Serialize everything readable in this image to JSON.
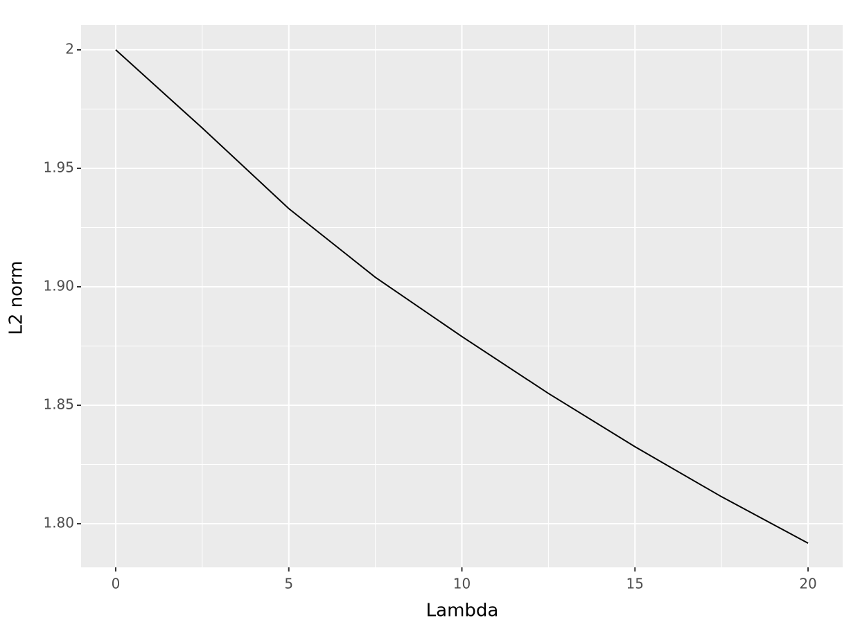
{
  "chart_data": {
    "type": "line",
    "x_label": "Lambda",
    "y_label": "L2 norm",
    "x": [
      0,
      2.5,
      5,
      7.5,
      10,
      12.5,
      15,
      17.5,
      20
    ],
    "series": [
      {
        "color": "#000000",
        "values": [
          2.0,
          1.967,
          1.933,
          1.904,
          1.879,
          1.855,
          1.8325,
          1.8114,
          1.7918
        ]
      }
    ],
    "xlim": [
      -1,
      21
    ],
    "ylim": [
      1.7816,
      2.0105
    ],
    "xticks": [
      0,
      5,
      10,
      15,
      20
    ],
    "yticks": [
      2,
      1.95,
      {
        "value": 1.9,
        "label": "1.90"
      },
      1.85,
      {
        "value": 1.8,
        "label": "1.80"
      }
    ],
    "grid": true
  }
}
